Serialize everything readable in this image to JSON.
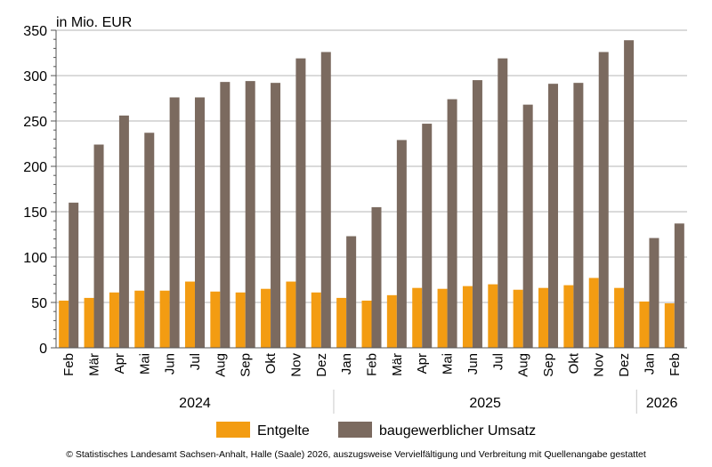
{
  "chart_data": {
    "type": "bar",
    "unit_label": "in Mio. EUR",
    "categories": [
      "Feb",
      "Mär",
      "Apr",
      "Mai",
      "Jun",
      "Jul",
      "Aug",
      "Sep",
      "Okt",
      "Nov",
      "Dez",
      "Jan",
      "Feb",
      "Mär",
      "Apr",
      "Mai",
      "Jun",
      "Jul",
      "Aug",
      "Sep",
      "Okt",
      "Nov",
      "Dez",
      "Jan",
      "Feb"
    ],
    "year_groups": [
      {
        "label": "2024",
        "start": 0,
        "end": 10
      },
      {
        "label": "2025",
        "start": 11,
        "end": 22
      },
      {
        "label": "2026",
        "start": 23,
        "end": 24
      }
    ],
    "series": [
      {
        "name": "Entgelte",
        "color": "#f39c12",
        "values": [
          52,
          55,
          61,
          63,
          63,
          73,
          62,
          61,
          65,
          73,
          61,
          55,
          52,
          58,
          66,
          65,
          68,
          70,
          64,
          66,
          69,
          77,
          66,
          51,
          49
        ]
      },
      {
        "name": "baugewerblicher Umsatz",
        "color": "#7b6a5f",
        "values": [
          160,
          224,
          256,
          237,
          276,
          276,
          293,
          294,
          292,
          319,
          326,
          123,
          155,
          229,
          247,
          274,
          295,
          319,
          268,
          291,
          292,
          326,
          339,
          121,
          137
        ]
      }
    ],
    "ylim": [
      0,
      350
    ],
    "yticks": [
      0,
      50,
      100,
      150,
      200,
      250,
      300,
      350
    ],
    "grid": true,
    "legend_position": "bottom"
  },
  "footer": "© Statistisches Landesamt Sachsen-Anhalt, Halle (Saale) 2026, auszugsweise Vervielfältigung und Verbreitung mit Quellenangabe gestattet"
}
